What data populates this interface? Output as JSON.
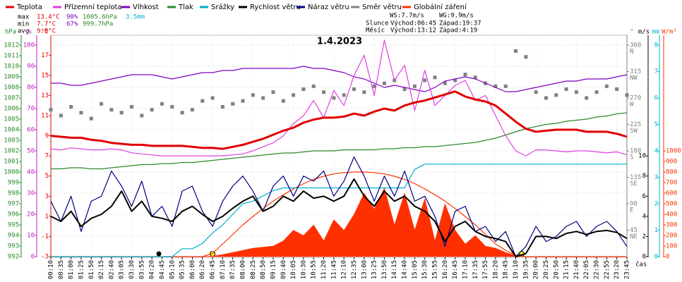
{
  "chart_data": {
    "type": "line",
    "title": "1.4.2023",
    "grid": true,
    "stats": {
      "max": [
        "max",
        "13.4°C",
        "90%",
        "1005.6hPa",
        "3.5mm"
      ],
      "min": [
        "min",
        "7.7°C",
        "67%",
        "999.7hPa"
      ],
      "avg": [
        "avg",
        "9.9°C"
      ]
    },
    "wind": [
      "WS:7.7m/s",
      "WG:9.9m/s"
    ],
    "sun": [
      "Slunce",
      "Východ:06:45",
      "Západ:19:37"
    ],
    "moon": [
      "Měsíc",
      "Východ:13:12",
      "Západ:4:19"
    ],
    "x_label": "čas",
    "categories": [
      "00:10",
      "00:35",
      "01:00",
      "01:25",
      "01:50",
      "02:15",
      "02:40",
      "03:05",
      "03:30",
      "03:55",
      "04:20",
      "04:45",
      "05:10",
      "05:35",
      "06:00",
      "06:20",
      "06:45",
      "07:10",
      "07:35",
      "08:00",
      "08:25",
      "08:50",
      "09:15",
      "09:40",
      "10:05",
      "10:30",
      "10:55",
      "11:20",
      "11:45",
      "12:10",
      "12:35",
      "13:00",
      "13:25",
      "13:50",
      "14:15",
      "14:40",
      "15:05",
      "15:30",
      "15:55",
      "16:20",
      "16:45",
      "17:10",
      "17:35",
      "17:55",
      "18:20",
      "18:45",
      "19:10",
      "19:35",
      "20:00",
      "20:25",
      "20:50",
      "21:15",
      "21:40",
      "22:05",
      "22:30",
      "22:55",
      "23:20",
      "23:45"
    ],
    "y_axes": [
      {
        "label": "hPa",
        "color": "#2a8a2a",
        "lim": [
          992,
          1012
        ],
        "ticks": [
          992,
          993,
          994,
          995,
          996,
          997,
          998,
          999,
          1000,
          1001,
          1002,
          1003,
          1004,
          1005,
          1006,
          1007,
          1008,
          1009,
          1010,
          1011,
          1012
        ]
      },
      {
        "label": "%",
        "color": "#c020c0",
        "lim": [
          0,
          100
        ],
        "ticks": [
          0,
          10,
          20,
          30,
          40,
          50,
          60,
          70,
          80,
          90,
          100
        ]
      },
      {
        "label": "°C",
        "color": "#e00000",
        "lim": [
          -3,
          18
        ],
        "ticks": [
          -3,
          -1,
          1,
          3,
          5,
          7,
          9,
          11,
          13,
          15,
          17
        ]
      },
      {
        "label": "°",
        "color": "#808080",
        "lim": [
          0,
          360
        ],
        "ticks": [
          45,
          90,
          135,
          180,
          225,
          270,
          315,
          360
        ]
      },
      {
        "label": "m/s",
        "color": "#000000",
        "lim": [
          0,
          21
        ],
        "ticks": [
          0,
          2,
          4,
          6,
          8,
          10
        ]
      },
      {
        "label": "mm",
        "color": "#00b0d0",
        "lim": [
          0,
          8
        ],
        "ticks": [
          0,
          1,
          2,
          3,
          4,
          5,
          6,
          7,
          8
        ]
      },
      {
        "label": "W/m²",
        "color": "#ff3000",
        "lim": [
          0,
          2000
        ],
        "ticks": [
          0,
          100,
          200,
          300,
          400,
          500,
          600,
          700,
          800,
          900,
          1000
        ]
      }
    ],
    "compass": [
      "NE",
      "E",
      "SE",
      "S",
      "SW",
      "W",
      "NW",
      "N"
    ],
    "series": [
      {
        "name": "Globální záření",
        "color": "#ff3000",
        "axis": 6,
        "style": "area",
        "values": [
          0,
          0,
          0,
          0,
          0,
          0,
          0,
          0,
          0,
          0,
          0,
          0,
          0,
          0,
          0,
          0,
          5,
          20,
          40,
          60,
          80,
          90,
          100,
          150,
          250,
          200,
          300,
          150,
          350,
          250,
          400,
          600,
          450,
          650,
          300,
          600,
          250,
          550,
          150,
          500,
          250,
          120,
          200,
          100,
          80,
          40,
          10,
          0,
          0,
          0,
          0,
          0,
          0,
          0,
          0,
          0,
          0,
          0
        ]
      },
      {
        "color": "#ff3000",
        "axis": 6,
        "style": "line",
        "values": [
          0,
          0,
          0,
          0,
          0,
          0,
          0,
          0,
          0,
          0,
          0,
          0,
          0,
          0,
          0,
          0,
          30,
          120,
          210,
          300,
          380,
          455,
          525,
          585,
          640,
          690,
          730,
          760,
          782,
          795,
          800,
          800,
          795,
          782,
          760,
          730,
          690,
          640,
          585,
          525,
          455,
          380,
          300,
          210,
          120,
          60,
          15,
          0,
          0,
          0,
          0,
          0,
          0,
          0,
          0,
          0,
          0,
          0
        ]
      },
      {
        "name": "Tlak",
        "color": "#2a8a2a",
        "axis": 0,
        "style": "line",
        "values": [
          1000.3,
          1000.3,
          1000.4,
          1000.4,
          1000.3,
          1000.3,
          1000.4,
          1000.5,
          1000.6,
          1000.7,
          1000.7,
          1000.8,
          1000.8,
          1000.9,
          1000.9,
          1001.0,
          1001.1,
          1001.2,
          1001.3,
          1001.4,
          1001.5,
          1001.6,
          1001.7,
          1001.8,
          1001.8,
          1001.9,
          1002.0,
          1002.0,
          1002.0,
          1002.1,
          1002.1,
          1002.1,
          1002.1,
          1002.2,
          1002.2,
          1002.3,
          1002.3,
          1002.4,
          1002.4,
          1002.5,
          1002.6,
          1002.7,
          1002.8,
          1003.0,
          1003.2,
          1003.5,
          1003.8,
          1004.1,
          1004.3,
          1004.5,
          1004.6,
          1004.8,
          1004.9,
          1005.0,
          1005.2,
          1005.3,
          1005.5,
          1005.6
        ]
      },
      {
        "name": "Srážky",
        "color": "#00b0d0",
        "axis": 5,
        "style": "line",
        "values": [
          0,
          0,
          0,
          0,
          0,
          0,
          0,
          0,
          0,
          0,
          0,
          0,
          0,
          0.3,
          0.3,
          0.5,
          0.9,
          1.2,
          1.6,
          2.0,
          2.1,
          2.3,
          2.5,
          2.6,
          2.6,
          2.6,
          2.6,
          2.6,
          2.6,
          2.6,
          2.6,
          2.6,
          2.6,
          2.6,
          2.6,
          2.6,
          3.3,
          3.5,
          3.5,
          3.5,
          3.5,
          3.5,
          3.5,
          3.5,
          3.5,
          3.5,
          3.5,
          3.5,
          3.5,
          3.5,
          3.5,
          3.5,
          3.5,
          3.5,
          3.5,
          3.5,
          3.5,
          3.5
        ]
      },
      {
        "name": "Směr větru",
        "color": "#808080",
        "axis": 3,
        "style": "points",
        "values": [
          250,
          240,
          255,
          245,
          235,
          260,
          250,
          245,
          255,
          240,
          250,
          260,
          255,
          245,
          250,
          265,
          270,
          255,
          260,
          265,
          275,
          270,
          280,
          265,
          275,
          285,
          290,
          280,
          270,
          275,
          285,
          280,
          290,
          295,
          300,
          285,
          290,
          300,
          305,
          295,
          300,
          310,
          305,
          295,
          290,
          290,
          350,
          340,
          280,
          270,
          275,
          285,
          280,
          270,
          280,
          290,
          285,
          275
        ]
      },
      {
        "name": "Vlhkost",
        "color": "#8000c0",
        "axis": 1,
        "style": "line",
        "values": [
          82,
          82,
          81,
          81,
          82,
          83,
          84,
          85,
          86,
          86,
          86,
          85,
          84,
          85,
          86,
          87,
          87,
          88,
          88,
          89,
          89,
          89,
          89,
          89,
          89,
          90,
          89,
          89,
          88,
          87,
          85,
          84,
          82,
          80,
          81,
          80,
          79,
          78,
          80,
          83,
          84,
          85,
          84,
          82,
          80,
          78,
          78,
          79,
          80,
          81,
          82,
          83,
          83,
          84,
          84,
          84,
          85,
          86
        ]
      },
      {
        "name": "Přízemní teplota",
        "color": "#e040e0",
        "axis": 2,
        "style": "line",
        "values": [
          7.7,
          7.6,
          7.8,
          7.7,
          7.6,
          7.6,
          7.7,
          7.6,
          7.3,
          7.2,
          7.1,
          7.0,
          7.0,
          7.0,
          7.0,
          7.0,
          7.0,
          7.0,
          7.1,
          7.2,
          7.5,
          7.9,
          8.3,
          9.0,
          10.2,
          11.0,
          12.5,
          10.8,
          13.5,
          12.0,
          15.0,
          17.0,
          13.0,
          18.5,
          14.5,
          16.0,
          11.5,
          15.5,
          12.0,
          13.0,
          14.0,
          14.5,
          12.5,
          13.0,
          11.0,
          9.0,
          7.5,
          7.0,
          7.6,
          7.6,
          7.5,
          7.4,
          7.5,
          7.5,
          7.4,
          7.3,
          7.4,
          7.1
        ]
      },
      {
        "name": "Teplota",
        "color": "#e00000",
        "axis": 2,
        "style": "line",
        "width": 3,
        "values": [
          9.0,
          8.9,
          8.8,
          8.8,
          8.6,
          8.5,
          8.3,
          8.2,
          8.1,
          8.1,
          8.0,
          8.0,
          8.0,
          8.0,
          7.9,
          7.8,
          7.8,
          7.7,
          7.9,
          8.1,
          8.4,
          8.7,
          9.1,
          9.5,
          9.8,
          10.3,
          10.6,
          10.8,
          10.8,
          10.9,
          11.2,
          11.0,
          11.4,
          11.7,
          11.5,
          12.0,
          12.3,
          12.5,
          12.8,
          13.1,
          13.4,
          12.9,
          12.6,
          12.4,
          12.0,
          11.2,
          10.4,
          9.7,
          9.4,
          9.5,
          9.6,
          9.6,
          9.6,
          9.4,
          9.4,
          9.4,
          9.2,
          8.9
        ]
      },
      {
        "name": "Náraz větru",
        "color": "#000080",
        "axis": 4,
        "style": "line",
        "values": [
          5.5,
          3.5,
          6.0,
          2.5,
          5.5,
          6.0,
          8.5,
          7.0,
          5.0,
          7.5,
          4.0,
          5.0,
          3.0,
          6.5,
          7.0,
          4.5,
          3.0,
          5.5,
          7.0,
          8.0,
          6.5,
          4.5,
          7.0,
          8.0,
          6.0,
          8.0,
          7.5,
          8.5,
          6.0,
          7.5,
          9.9,
          8.0,
          5.5,
          8.0,
          6.0,
          8.5,
          5.5,
          6.0,
          4.0,
          1.0,
          4.5,
          5.0,
          2.5,
          3.0,
          1.5,
          2.5,
          0.0,
          1.0,
          3.0,
          1.5,
          2.0,
          3.0,
          3.5,
          2.0,
          3.0,
          3.5,
          2.5,
          1.0
        ]
      },
      {
        "name": "Rychlost větru",
        "color": "#000000",
        "axis": 4,
        "style": "line",
        "width": 2,
        "values": [
          4.0,
          3.5,
          4.5,
          3.0,
          3.8,
          4.2,
          5.0,
          6.5,
          4.5,
          5.5,
          4.0,
          3.8,
          3.5,
          4.5,
          5.0,
          4.2,
          3.5,
          4.0,
          4.8,
          5.5,
          6.0,
          4.5,
          5.0,
          6.0,
          5.5,
          6.5,
          5.8,
          6.0,
          5.5,
          6.0,
          7.7,
          6.0,
          5.0,
          6.5,
          5.5,
          6.0,
          5.0,
          4.5,
          3.5,
          1.5,
          3.0,
          3.5,
          2.5,
          2.0,
          1.8,
          1.5,
          0.0,
          0.3,
          2.0,
          2.0,
          1.8,
          2.3,
          2.5,
          2.2,
          2.5,
          2.6,
          2.4,
          1.8
        ]
      }
    ],
    "legend_order": [
      7,
      6,
      5,
      2,
      3,
      9,
      8,
      4,
      0
    ]
  }
}
